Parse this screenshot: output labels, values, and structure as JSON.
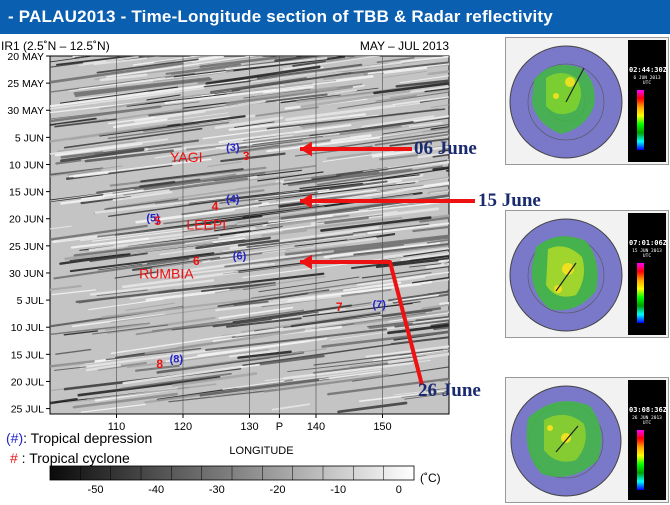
{
  "title": "- PALAU2013 -   Time-Longitude section of TBB & Radar reflectivity",
  "colors": {
    "title_bg": "#0a5fb0",
    "arrow": "#ee1111",
    "td_label": "#2222cc",
    "tc_label": "#ee1111",
    "date_label": "#1a2a6e"
  },
  "chart_data": {
    "type": "heatmap",
    "header_left": "IR1 (2.5˚N – 12.5˚N)",
    "header_right": "MAY – JUL  2013",
    "xlabel": "LONGITUDE",
    "x_range": [
      100,
      160
    ],
    "x_ticks": [
      "110",
      "120",
      "130",
      "P",
      "140",
      "150"
    ],
    "x_tick_values": [
      110,
      120,
      130,
      134.5,
      140,
      150
    ],
    "y_ticks": [
      "20 MAY",
      "25 MAY",
      "30 MAY",
      "5 JUN",
      "10 JUN",
      "15 JUN",
      "20 JUN",
      "25 JUN",
      "30 JUN",
      "5 JUL",
      "10 JUL",
      "15 JUL",
      "20 JUL",
      "25 JUL"
    ],
    "y_range_days": [
      0,
      66
    ],
    "colorbar": {
      "ticks": [
        "-50",
        "-40",
        "-30",
        "-20",
        "-10",
        "0"
      ],
      "unit": "(˚C)"
    },
    "storms": [
      {
        "num": "(5)",
        "kind": "td",
        "lon": 115.5,
        "day": 30.5
      },
      {
        "num": "5",
        "kind": "tc",
        "lon": 116.2,
        "day": 31.2
      },
      {
        "num": "(3)",
        "kind": "td",
        "lon": 127.5,
        "day": 17.5
      },
      {
        "num": "3",
        "kind": "tc",
        "lon": 129.5,
        "day": 19.2
      },
      {
        "num": "(4)",
        "kind": "td",
        "lon": 127.5,
        "day": 27.0
      },
      {
        "num": "4",
        "kind": "tc",
        "lon": 124.8,
        "day": 28.5
      },
      {
        "num": "(6)",
        "kind": "td",
        "lon": 128.5,
        "day": 37.5
      },
      {
        "num": "6",
        "kind": "tc",
        "lon": 122.0,
        "day": 38.5
      },
      {
        "num": "7",
        "kind": "tc",
        "lon": 143.5,
        "day": 47.0
      },
      {
        "num": "(7)",
        "kind": "td",
        "lon": 149.5,
        "day": 46.5
      },
      {
        "num": "(8)",
        "kind": "td",
        "lon": 119.0,
        "day": 56.5
      },
      {
        "num": "8",
        "kind": "tc",
        "lon": 116.5,
        "day": 57.5
      }
    ],
    "storm_names": [
      {
        "name": "YAGI",
        "lon": 120.5,
        "day": 19.5
      },
      {
        "name": "LEEPI",
        "lon": 123.5,
        "day": 32.0
      },
      {
        "name": "RUMBIA",
        "lon": 117.5,
        "day": 41.0
      }
    ]
  },
  "arrows": [
    {
      "label": "06 June"
    },
    {
      "label": "15 June"
    },
    {
      "label": "26 June"
    }
  ],
  "legend": {
    "td_symbol": "(#)",
    "td_text": ": Tropical depression",
    "tc_symbol": "#",
    "tc_text": " :  Tropical cyclone"
  },
  "radar_images": [
    {
      "time": "02:44:30Z",
      "date": "6 JUN 2013 UTC"
    },
    {
      "time": "07:01:06Z",
      "date": "15 JUN 2013 UTC"
    },
    {
      "time": "03:08:36Z",
      "date": "26 JUN 2013 UTC"
    }
  ]
}
